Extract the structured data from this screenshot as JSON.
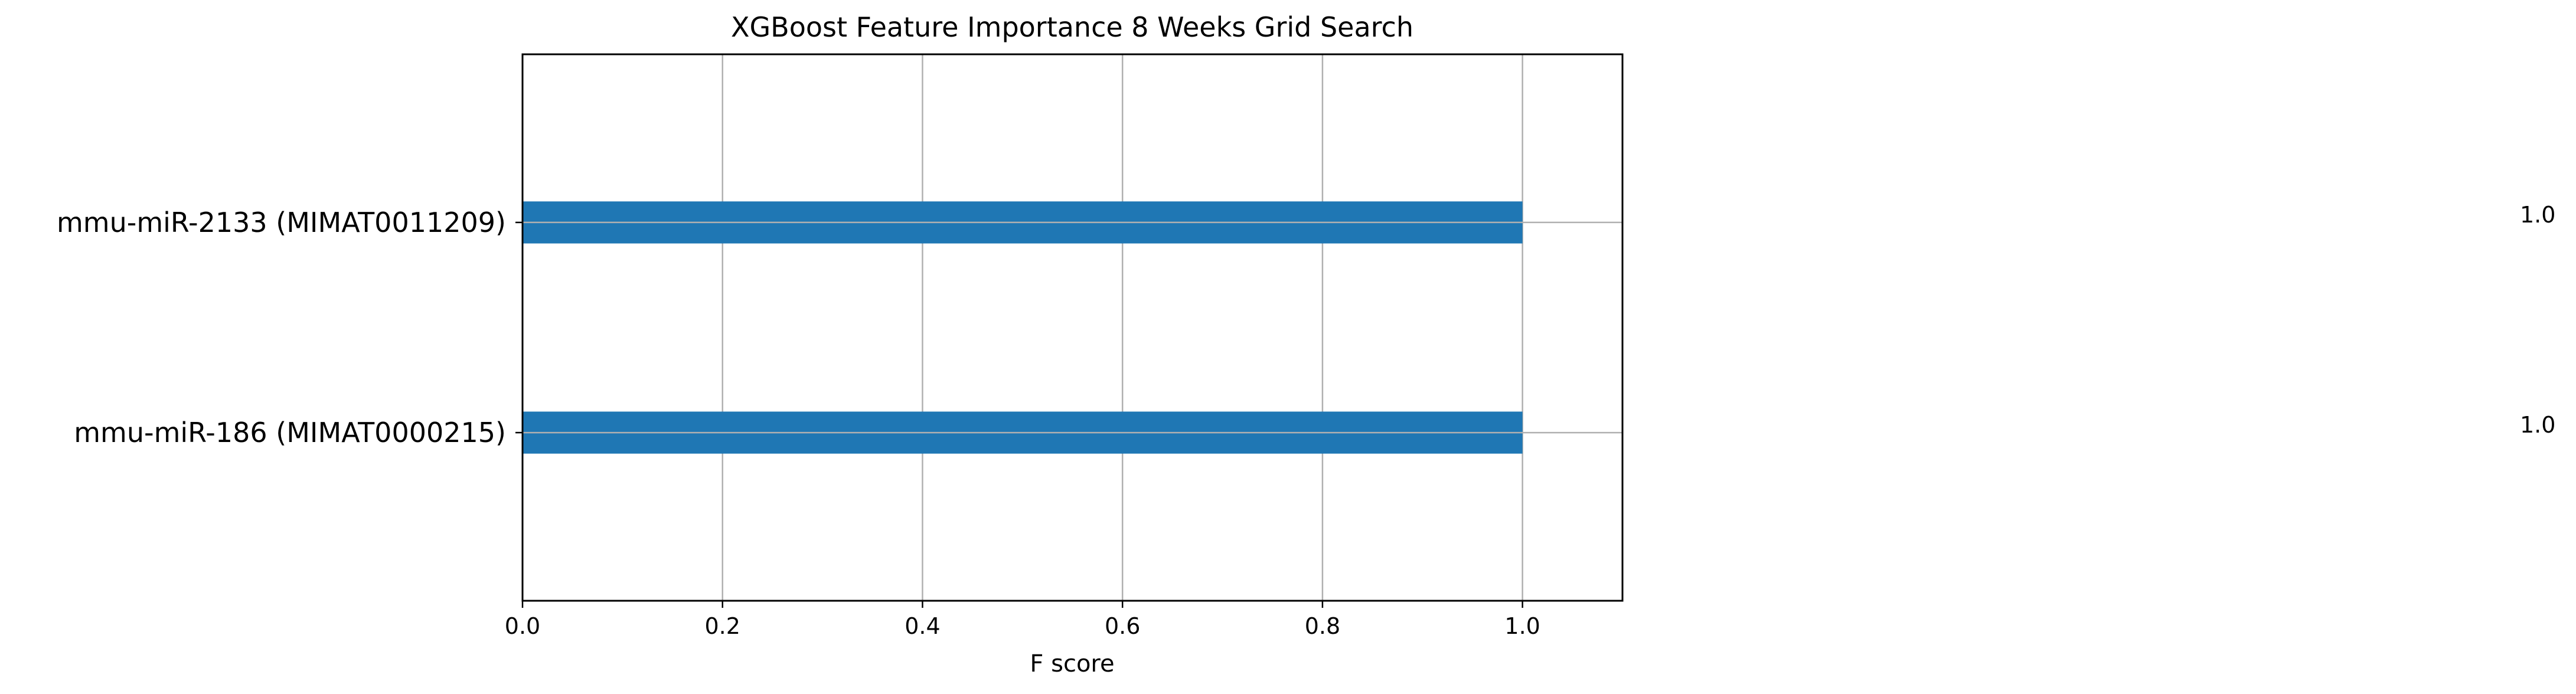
{
  "chart_data": {
    "type": "bar",
    "orientation": "horizontal",
    "title": "XGBoost Feature Importance 8 Weeks Grid Search",
    "xlabel": "F score",
    "ylabel": "",
    "xlim": [
      0,
      1.1
    ],
    "x_ticks": [
      "0.0",
      "0.2",
      "0.4",
      "0.6",
      "0.8",
      "1.0"
    ],
    "categories": [
      "mmu-miR-2133 (MIMAT0011209)",
      "mmu-miR-186 (MIMAT0000215)"
    ],
    "values": [
      1.0,
      1.0
    ],
    "value_labels": [
      "1.0",
      "1.0"
    ],
    "grid": true,
    "bar_color": "#1f77b4",
    "grid_color": "#b0b0b0"
  }
}
